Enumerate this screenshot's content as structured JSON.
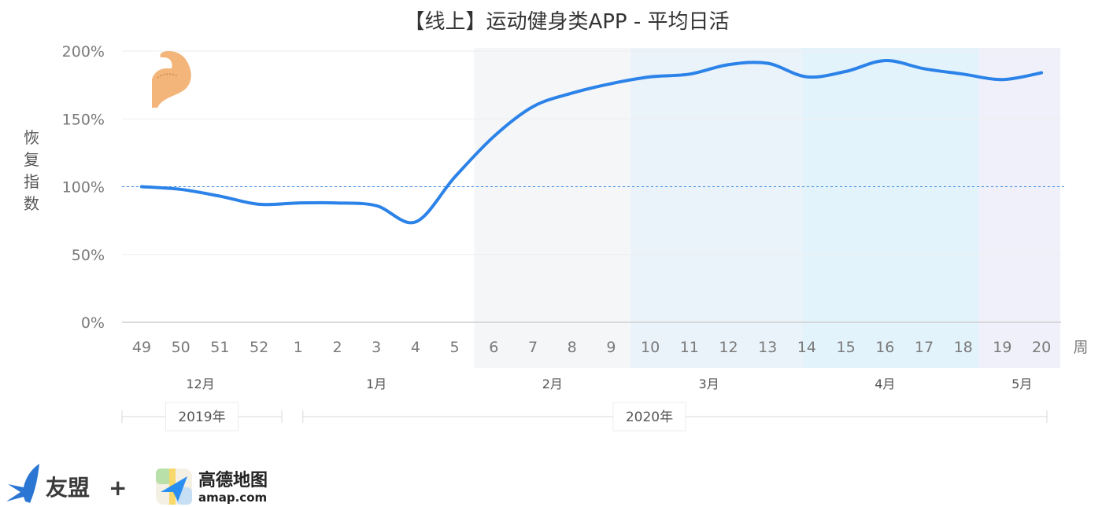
{
  "chart_data": {
    "type": "line",
    "title": "【线上】运动健身类APP - 平均日活",
    "ylabel": "恢复指数",
    "x_unit_label": "周",
    "ylim": [
      0,
      200
    ],
    "yticks": [
      0,
      50,
      100,
      150,
      200
    ],
    "ytick_labels": [
      "0%",
      "50%",
      "100%",
      "150%",
      "200%"
    ],
    "reference_line": 100,
    "categories": [
      "49",
      "50",
      "51",
      "52",
      "1",
      "2",
      "3",
      "4",
      "5",
      "6",
      "7",
      "8",
      "9",
      "10",
      "11",
      "12",
      "13",
      "14",
      "15",
      "16",
      "17",
      "18",
      "19",
      "20"
    ],
    "series": [
      {
        "values": [
          100,
          98,
          93,
          87,
          88,
          88,
          86,
          74,
          107,
          137,
          159,
          169,
          176,
          181,
          183,
          190,
          191,
          181,
          185,
          193,
          187,
          183,
          179,
          184
        ]
      }
    ],
    "months": [
      {
        "label": "12月",
        "from": 0,
        "to": 3
      },
      {
        "label": "1月",
        "from": 4,
        "to": 8
      },
      {
        "label": "2月",
        "from": 9,
        "to": 12
      },
      {
        "label": "3月",
        "from": 13,
        "to": 16
      },
      {
        "label": "4月",
        "from": 17,
        "to": 21
      },
      {
        "label": "5月",
        "from": 22,
        "to": 23
      }
    ],
    "years": [
      {
        "label": "2019年",
        "from": 0,
        "to": 3
      },
      {
        "label": "2020年",
        "from": 4,
        "to": 23
      }
    ],
    "shaded_ranges": [
      {
        "from": 8.5,
        "to": 12.5,
        "color": "#f5f6f8"
      },
      {
        "from": 12.5,
        "to": 16.9,
        "color": "#eaf2fa"
      },
      {
        "from": 16.9,
        "to": 21.4,
        "color": "#e3f3fc"
      },
      {
        "from": 21.4,
        "to": 23.5,
        "color": "#f0f0fb"
      }
    ],
    "line_color": "#2b82e8",
    "grid": true
  },
  "logos": {
    "umeng": "友盟",
    "plus": "+",
    "amap_cn": "高德地图",
    "amap_en": "amap.com"
  },
  "icons": [
    "muscle-arm-icon",
    "umeng-bird-icon",
    "amap-logo-icon"
  ]
}
